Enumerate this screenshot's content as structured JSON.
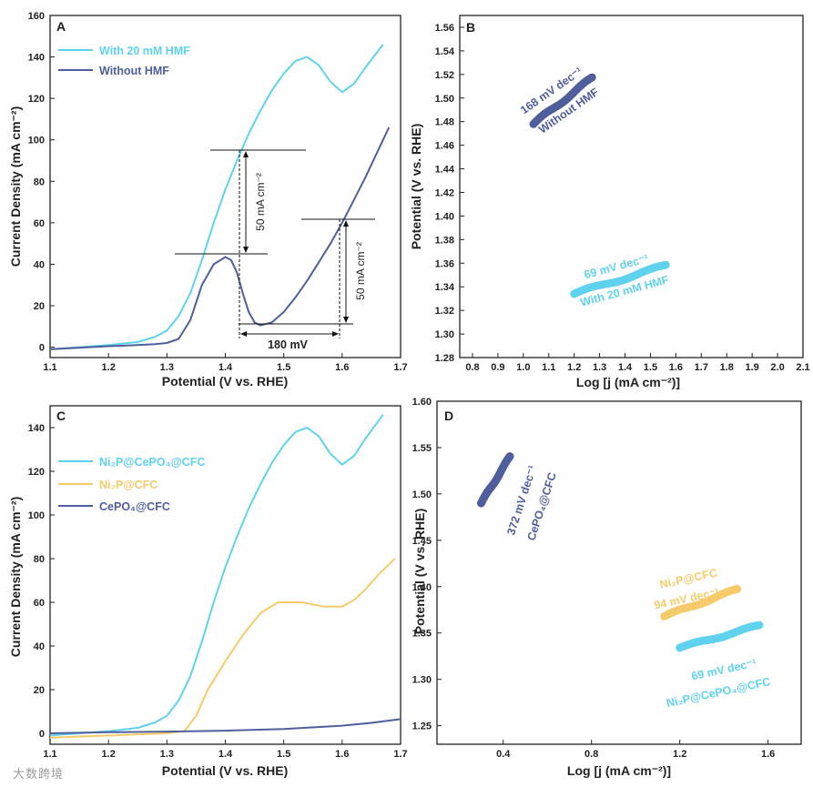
{
  "colors": {
    "cyan": "#5fd2ee",
    "navy": "#4f5f9c",
    "yellow": "#f5cb6b",
    "axis": "#222222"
  },
  "chart_data": [
    {
      "panel": "A",
      "type": "line",
      "xlabel": "Potential (V vs. RHE)",
      "ylabel": "Current Density (mA cm⁻²)",
      "xlim": [
        1.1,
        1.7
      ],
      "ylim": [
        -5,
        160
      ],
      "xticks": [
        "1.1",
        "1.2",
        "1.3",
        "1.4",
        "1.5",
        "1.6",
        "1.7"
      ],
      "yticks": [
        "0",
        "20",
        "40",
        "60",
        "80",
        "100",
        "120",
        "140",
        "160"
      ],
      "series": [
        {
          "name": "With 20 mM HMF",
          "color": "cyan",
          "x": [
            1.1,
            1.2,
            1.25,
            1.28,
            1.3,
            1.32,
            1.34,
            1.36,
            1.38,
            1.4,
            1.42,
            1.44,
            1.46,
            1.48,
            1.5,
            1.52,
            1.54,
            1.56,
            1.58,
            1.6,
            1.62,
            1.64,
            1.67
          ],
          "y": [
            -1,
            1,
            2.5,
            5,
            8,
            15,
            26,
            42,
            60,
            76,
            90,
            103,
            114,
            124,
            132,
            138,
            140,
            136,
            128,
            123,
            127,
            135,
            146
          ]
        },
        {
          "name": "Without HMF",
          "color": "navy",
          "x": [
            1.1,
            1.2,
            1.25,
            1.28,
            1.3,
            1.32,
            1.34,
            1.36,
            1.38,
            1.4,
            1.41,
            1.42,
            1.43,
            1.44,
            1.45,
            1.46,
            1.48,
            1.5,
            1.52,
            1.54,
            1.56,
            1.58,
            1.6,
            1.62,
            1.64,
            1.66,
            1.68
          ],
          "y": [
            -1,
            0.5,
            1,
            1.5,
            2,
            4,
            13,
            30,
            40,
            43.5,
            42,
            36,
            26,
            17,
            12,
            10.5,
            12,
            17,
            24,
            32,
            41,
            50,
            60,
            71,
            82,
            94,
            106
          ]
        }
      ],
      "annotations": {
        "dy1": "50 mA cm⁻²",
        "dy2": "50 mA cm⁻²",
        "dx": "180 mV"
      }
    },
    {
      "panel": "B",
      "type": "scatter",
      "xlabel": "Log [j (mA cm⁻²)]",
      "ylabel": "Potential (V vs. RHE)",
      "xlim": [
        0.75,
        2.1
      ],
      "ylim": [
        1.28,
        1.57
      ],
      "xticks": [
        "0.8",
        "0.9",
        "1.0",
        "1.1",
        "1.2",
        "1.3",
        "1.4",
        "1.5",
        "1.6",
        "1.7",
        "1.8",
        "1.9",
        "2.0",
        "2.1"
      ],
      "yticks": [
        "1.28",
        "1.30",
        "1.32",
        "1.34",
        "1.36",
        "1.38",
        "1.40",
        "1.42",
        "1.44",
        "1.46",
        "1.48",
        "1.50",
        "1.52",
        "1.54",
        "1.56"
      ],
      "series": [
        {
          "name": "Without HMF",
          "color": "navy",
          "x": [
            1.04,
            1.27
          ],
          "y": [
            1.478,
            1.517
          ],
          "slope_label": "168 mV dec⁻¹"
        },
        {
          "name": "With 20 mM HMF",
          "color": "cyan",
          "x": [
            1.2,
            1.56
          ],
          "y": [
            1.334,
            1.358
          ],
          "slope_label": "69 mV dec⁻¹"
        }
      ]
    },
    {
      "panel": "C",
      "type": "line",
      "xlabel": "Potential (V vs. RHE)",
      "ylabel": "Current Density (mA cm⁻²)",
      "xlim": [
        1.1,
        1.7
      ],
      "ylim": [
        -5,
        150
      ],
      "xticks": [
        "1.1",
        "1.2",
        "1.3",
        "1.4",
        "1.5",
        "1.6",
        "1.7"
      ],
      "yticks": [
        "0",
        "20",
        "40",
        "60",
        "80",
        "100",
        "120",
        "140"
      ],
      "series": [
        {
          "name": "Ni₂P@CePO₄@CFC",
          "color": "cyan",
          "x": [
            1.1,
            1.2,
            1.25,
            1.28,
            1.3,
            1.32,
            1.34,
            1.36,
            1.38,
            1.4,
            1.42,
            1.44,
            1.46,
            1.48,
            1.5,
            1.52,
            1.54,
            1.56,
            1.58,
            1.6,
            1.62,
            1.64,
            1.67
          ],
          "y": [
            -1,
            1,
            2.5,
            5,
            8,
            15,
            26,
            42,
            60,
            76,
            90,
            103,
            114,
            124,
            132,
            138,
            140,
            136,
            128,
            123,
            127,
            135,
            146
          ]
        },
        {
          "name": "Ni₂P@CFC",
          "color": "yellow",
          "x": [
            1.1,
            1.2,
            1.3,
            1.33,
            1.35,
            1.37,
            1.4,
            1.43,
            1.46,
            1.49,
            1.51,
            1.53,
            1.55,
            1.57,
            1.6,
            1.62,
            1.64,
            1.66,
            1.69
          ],
          "y": [
            -2,
            -1,
            0,
            1,
            8,
            20,
            33,
            45,
            55,
            60,
            60,
            60,
            59,
            58,
            58,
            61,
            66,
            72,
            80
          ]
        },
        {
          "name": "CePO₄@CFC",
          "color": "navy",
          "x": [
            1.1,
            1.2,
            1.3,
            1.4,
            1.5,
            1.6,
            1.65,
            1.7
          ],
          "y": [
            0,
            0.5,
            0.8,
            1.2,
            2,
            3.5,
            4.8,
            6.5
          ]
        }
      ]
    },
    {
      "panel": "D",
      "type": "scatter",
      "xlabel": "Log [j (mA cm⁻²)]",
      "ylabel": "Potential (V vs. RHE)",
      "xlim": [
        0.1,
        1.75
      ],
      "ylim": [
        1.23,
        1.6
      ],
      "xticks": [
        "0.4",
        "0.8",
        "1.2",
        "1.6"
      ],
      "yticks": [
        "1.25",
        "1.30",
        "1.35",
        "1.40",
        "1.45",
        "1.50",
        "1.55",
        "1.60"
      ],
      "series": [
        {
          "name": "CePO₄@CFC",
          "color": "navy",
          "x": [
            0.3,
            0.43
          ],
          "y": [
            1.49,
            1.54
          ],
          "slope_label": "372 mV dec⁻¹"
        },
        {
          "name": "Ni₂P@CFC",
          "color": "yellow",
          "x": [
            1.13,
            1.46
          ],
          "y": [
            1.368,
            1.397
          ],
          "slope_label": "94 mV dec⁻¹"
        },
        {
          "name": "Ni₂P@CePO₄@CFC",
          "color": "cyan",
          "x": [
            1.2,
            1.56
          ],
          "y": [
            1.334,
            1.358
          ],
          "slope_label": "69 mV dec⁻¹"
        }
      ]
    }
  ],
  "labels": {
    "panelA": "A",
    "panelB": "B",
    "panelC": "C",
    "panelD": "D",
    "legA1": "With 20 mM HMF",
    "legA2": "Without HMF",
    "legC1": "Ni₂P@CePO₄@CFC",
    "legC2": "Ni₂P@CFC",
    "legC3": "CePO₄@CFC",
    "B_navy_slope": "168 mV dec⁻¹",
    "B_navy_name": "Without HMF",
    "B_cyan_slope": "69 mV dec⁻¹",
    "B_cyan_name": "With 20 mM HMF",
    "D_navy_slope": "372 mV dec⁻¹",
    "D_navy_name": "CePO₄@CFC",
    "D_yellow_name": "Ni₂P@CFC",
    "D_yellow_slope": "94 mV dec⁻¹",
    "D_cyan_slope": "69 mV dec⁻¹",
    "D_cyan_name": "Ni₂P@CePO₄@CFC",
    "watermark": "大数跨境"
  }
}
